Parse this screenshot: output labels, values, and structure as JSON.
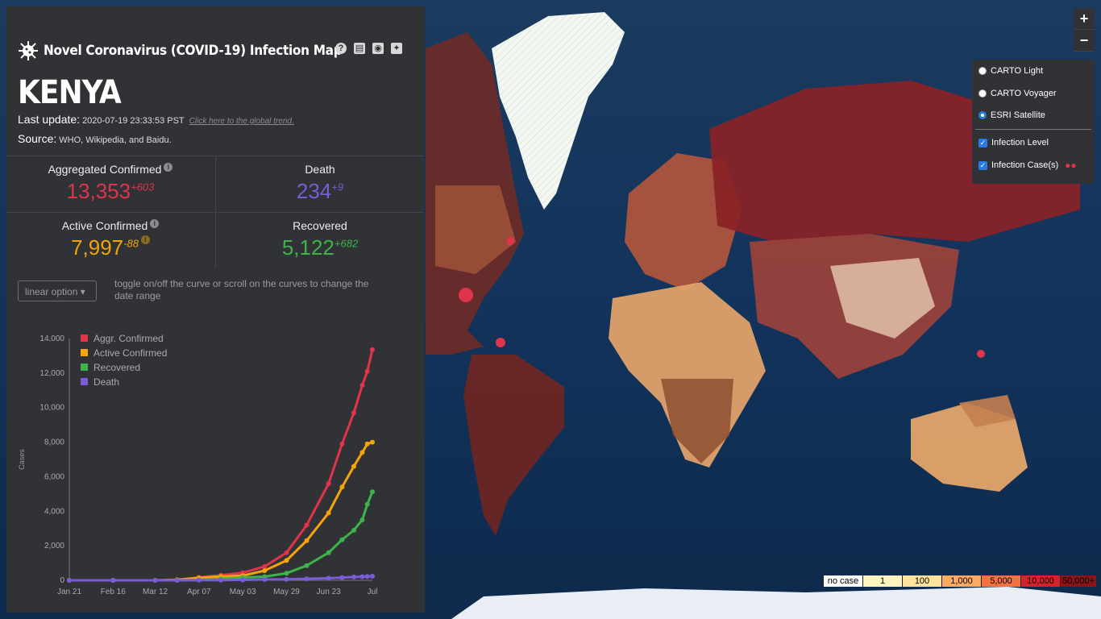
{
  "header": {
    "title": "Novel Coronavirus (COVID-19) Infection Map",
    "country": "KENYA",
    "last_update_label": "Last update:",
    "last_update_value": "2020-07-19 23:33:53 PST",
    "global_trend_link": "Click here to the global trend.",
    "source_label": "Source:",
    "source_value": "WHO, Wikipedia, and Baidu."
  },
  "stats": {
    "aggregated_confirmed": {
      "label": "Aggregated Confirmed",
      "value": "13,353",
      "delta": "+603",
      "color": "#e0344a"
    },
    "death": {
      "label": "Death",
      "value": "234",
      "delta": "+9",
      "color": "#7a5cd6"
    },
    "active_confirmed": {
      "label": "Active Confirmed",
      "value": "7,997",
      "delta": "-88",
      "color": "#f5a40b"
    },
    "recovered": {
      "label": "Recovered",
      "value": "5,122",
      "delta": "+682",
      "color": "#3db34a"
    }
  },
  "controls": {
    "scale_option": "linear option",
    "hint": "toggle on/off the curve or scroll on the curves to change the date range"
  },
  "chart_data": {
    "type": "line",
    "ylabel": "Cases",
    "ylim": [
      0,
      14000
    ],
    "yticks": [
      "0",
      "2,000",
      "4,000",
      "6,000",
      "8,000",
      "10,000",
      "12,000",
      "14,000"
    ],
    "xticks": [
      "Jan 21",
      "Feb 16",
      "Mar 12",
      "Apr 07",
      "May 03",
      "May 29",
      "Jun 23",
      "Jul"
    ],
    "x": [
      "2020-01-21",
      "2020-02-16",
      "2020-03-12",
      "2020-03-25",
      "2020-04-07",
      "2020-04-20",
      "2020-05-03",
      "2020-05-16",
      "2020-05-29",
      "2020-06-10",
      "2020-06-23",
      "2020-07-01",
      "2020-07-08",
      "2020-07-13",
      "2020-07-16",
      "2020-07-19"
    ],
    "series": [
      {
        "name": "Aggr. Confirmed",
        "color": "#e0344a",
        "values": [
          0,
          0,
          1,
          30,
          170,
          300,
          435,
          800,
          1600,
          3200,
          5600,
          7900,
          9700,
          11300,
          12100,
          13353
        ]
      },
      {
        "name": "Active Confirmed",
        "color": "#f5a40b",
        "values": [
          0,
          0,
          1,
          30,
          140,
          220,
          270,
          560,
          1150,
          2300,
          3900,
          5400,
          6600,
          7400,
          7900,
          7997
        ]
      },
      {
        "name": "Recovered",
        "color": "#3db34a",
        "values": [
          0,
          0,
          0,
          0,
          20,
          80,
          165,
          210,
          410,
          850,
          1600,
          2350,
          2900,
          3500,
          4400,
          5122
        ]
      },
      {
        "name": "Death",
        "color": "#7a5cd6",
        "values": [
          0,
          0,
          0,
          1,
          9,
          14,
          24,
          45,
          60,
          90,
          125,
          160,
          190,
          210,
          222,
          234
        ]
      }
    ]
  },
  "map_controls": {
    "zoom_in": "+",
    "zoom_out": "−",
    "basemaps": [
      "CARTO Light",
      "CARTO Voyager",
      "ESRI Satellite"
    ],
    "selected_basemap": "ESRI Satellite",
    "overlays": [
      "Infection Level",
      "Infection Case(s)"
    ]
  },
  "legend": {
    "items": [
      {
        "label": "no case",
        "color": "#ffffff"
      },
      {
        "label": "1",
        "color": "#fff5bf"
      },
      {
        "label": "100",
        "color": "#fde39b"
      },
      {
        "label": "1,000",
        "color": "#fca961"
      },
      {
        "label": "5,000",
        "color": "#f3723f"
      },
      {
        "label": "10,000",
        "color": "#d6232b"
      },
      {
        "label": "50,000+",
        "color": "#8c1419"
      }
    ]
  }
}
